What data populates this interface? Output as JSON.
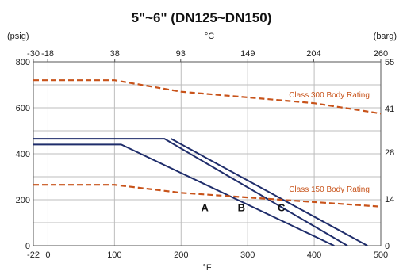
{
  "chart_data": {
    "type": "line",
    "title": "5\"~6\"  (DN125~DN150)",
    "x_axis": {
      "label": "°F",
      "range": [
        -22,
        500
      ],
      "ticks": [
        -22,
        0,
        100,
        200,
        300,
        400,
        500
      ]
    },
    "x2_axis": {
      "label": "°C",
      "range": [
        -30,
        260
      ],
      "ticks": [
        -30,
        -18,
        38,
        93,
        149,
        204,
        260
      ]
    },
    "y_axis": {
      "unit": "(psig)",
      "range": [
        0,
        800
      ],
      "ticks": [
        0,
        200,
        400,
        600,
        800
      ]
    },
    "y2_axis": {
      "unit": "(barg)",
      "range": [
        0,
        55
      ],
      "ticks": [
        0,
        14,
        28,
        41,
        55
      ]
    },
    "grid": true,
    "series": [
      {
        "name": "A",
        "style": "solid",
        "color": "#1f2d6b",
        "x": [
          -22,
          110,
          430
        ],
        "y": [
          440,
          440,
          0
        ]
      },
      {
        "name": "B",
        "style": "solid",
        "color": "#1f2d6b",
        "x": [
          -22,
          175,
          450
        ],
        "y": [
          465,
          465,
          0
        ]
      },
      {
        "name": "C",
        "style": "solid",
        "color": "#1f2d6b",
        "x": [
          185,
          480
        ],
        "y": [
          465,
          0
        ]
      },
      {
        "name": "Class 150 Body Rating",
        "style": "dashed",
        "color": "#c8531a",
        "x": [
          -22,
          100,
          200,
          300,
          400,
          500
        ],
        "y": [
          265,
          265,
          230,
          210,
          190,
          170
        ]
      },
      {
        "name": "Class 300 Body Rating",
        "style": "dashed",
        "color": "#c8531a",
        "x": [
          -22,
          100,
          200,
          300,
          400,
          500
        ],
        "y": [
          720,
          720,
          670,
          645,
          620,
          575
        ]
      }
    ],
    "annotations": [
      {
        "text": "A",
        "x": 230,
        "y": 150
      },
      {
        "text": "B",
        "x": 285,
        "y": 150
      },
      {
        "text": "C",
        "x": 345,
        "y": 150
      },
      {
        "text": "Class 150 Body Rating",
        "x": 362,
        "y": 235
      },
      {
        "text": "Class 300 Body Rating",
        "x": 362,
        "y": 645
      }
    ],
    "colors": {
      "solid": "#1f2d6b",
      "dashed": "#c8531a",
      "grid": "#bdbdbd",
      "axis": "#555555"
    }
  }
}
